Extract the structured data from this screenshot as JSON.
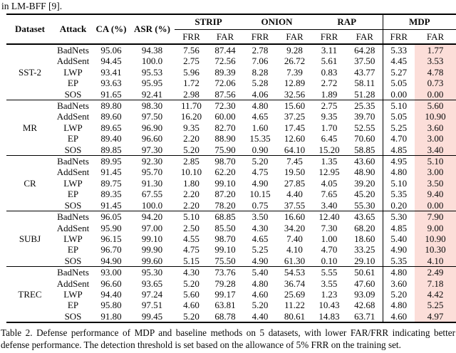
{
  "page": {
    "top_text": "in LM-BFF [9].",
    "caption": "Table 2. Defense performance of MDP and baseline methods on 5 datasets, with lower FAR/FRR indicating better defense performance. The detection threshold is set based on the allowance of 5% FRR on the training set."
  },
  "colors": {
    "highlight": "#fcded9",
    "rule": "#000000",
    "text": "#0a0a0a"
  },
  "table": {
    "headers": {
      "dataset": "Dataset",
      "attack": "Attack",
      "ca": "CA (%)",
      "asr": "ASR (%)",
      "methods": [
        "STRIP",
        "ONION",
        "RAP",
        "MDP"
      ],
      "sub": [
        "FRR",
        "FAR"
      ]
    },
    "groups": [
      {
        "dataset": "SST-2",
        "rows": [
          {
            "attack": "BadNets",
            "ca": "95.06",
            "asr": "94.38",
            "values": [
              "7.56",
              "87.44",
              "2.78",
              "9.28",
              "3.11",
              "64.28",
              "5.33",
              "1.77"
            ]
          },
          {
            "attack": "AddSent",
            "ca": "94.45",
            "asr": "100.0",
            "values": [
              "2.75",
              "72.56",
              "7.06",
              "26.72",
              "5.61",
              "37.50",
              "4.45",
              "3.53"
            ]
          },
          {
            "attack": "LWP",
            "ca": "93.41",
            "asr": "95.53",
            "values": [
              "5.96",
              "89.39",
              "8.28",
              "7.39",
              "0.83",
              "43.77",
              "5.27",
              "4.78"
            ]
          },
          {
            "attack": "EP",
            "ca": "93.63",
            "asr": "95.95",
            "values": [
              "1.72",
              "72.06",
              "5.28",
              "12.89",
              "2.72",
              "58.11",
              "5.05",
              "0.73"
            ]
          },
          {
            "attack": "SOS",
            "ca": "91.65",
            "asr": "92.41",
            "values": [
              "2.98",
              "87.56",
              "4.06",
              "32.56",
              "1.89",
              "51.28",
              "0.00",
              "0.00"
            ]
          }
        ]
      },
      {
        "dataset": "MR",
        "rows": [
          {
            "attack": "BadNets",
            "ca": "89.80",
            "asr": "98.30",
            "values": [
              "11.70",
              "72.30",
              "4.80",
              "15.60",
              "2.75",
              "25.35",
              "5.10",
              "5.60"
            ]
          },
          {
            "attack": "AddSent",
            "ca": "89.60",
            "asr": "97.50",
            "values": [
              "16.20",
              "60.00",
              "4.65",
              "37.25",
              "9.35",
              "39.70",
              "5.05",
              "10.90"
            ]
          },
          {
            "attack": "LWP",
            "ca": "89.65",
            "asr": "96.90",
            "values": [
              "9.35",
              "82.70",
              "1.60",
              "17.45",
              "1.70",
              "52.55",
              "5.25",
              "3.60"
            ]
          },
          {
            "attack": "EP",
            "ca": "89.40",
            "asr": "96.60",
            "values": [
              "2.20",
              "88.90",
              "15.35",
              "12.60",
              "6.45",
              "70.60",
              "4.70",
              "3.00"
            ]
          },
          {
            "attack": "SOS",
            "ca": "89.85",
            "asr": "97.30",
            "values": [
              "5.20",
              "75.90",
              "0.90",
              "64.10",
              "15.20",
              "58.85",
              "4.85",
              "3.40"
            ]
          }
        ]
      },
      {
        "dataset": "CR",
        "rows": [
          {
            "attack": "BadNets",
            "ca": "89.95",
            "asr": "92.30",
            "values": [
              "2.85",
              "98.70",
              "5.20",
              "7.45",
              "1.35",
              "43.60",
              "4.95",
              "5.10"
            ]
          },
          {
            "attack": "AddSent",
            "ca": "91.45",
            "asr": "95.70",
            "values": [
              "10.10",
              "62.20",
              "4.75",
              "19.50",
              "12.95",
              "48.90",
              "4.80",
              "3.00"
            ]
          },
          {
            "attack": "LWP",
            "ca": "89.75",
            "asr": "91.30",
            "values": [
              "1.80",
              "99.10",
              "4.90",
              "27.85",
              "4.05",
              "39.20",
              "5.10",
              "3.50"
            ]
          },
          {
            "attack": "EP",
            "ca": "89.35",
            "asr": "67.55",
            "values": [
              "2.20",
              "87.20",
              "10.15",
              "4.40",
              "7.65",
              "45.20",
              "5.35",
              "9.40"
            ]
          },
          {
            "attack": "SOS",
            "ca": "91.45",
            "asr": "100.0",
            "values": [
              "2.20",
              "78.20",
              "0.75",
              "37.55",
              "3.40",
              "55.30",
              "0.20",
              "0.00"
            ]
          }
        ]
      },
      {
        "dataset": "SUBJ",
        "rows": [
          {
            "attack": "BadNets",
            "ca": "96.05",
            "asr": "94.20",
            "values": [
              "5.10",
              "68.85",
              "3.50",
              "16.60",
              "12.40",
              "43.65",
              "5.30",
              "7.90"
            ]
          },
          {
            "attack": "AddSent",
            "ca": "95.90",
            "asr": "97.00",
            "values": [
              "2.50",
              "85.50",
              "4.30",
              "34.20",
              "7.30",
              "68.20",
              "4.85",
              "9.00"
            ]
          },
          {
            "attack": "LWP",
            "ca": "96.15",
            "asr": "99.10",
            "values": [
              "4.55",
              "98.70",
              "4.65",
              "7.40",
              "1.00",
              "18.60",
              "5.40",
              "10.90"
            ]
          },
          {
            "attack": "EP",
            "ca": "96.70",
            "asr": "99.90",
            "values": [
              "4.75",
              "99.10",
              "5.25",
              "4.10",
              "4.70",
              "33.25",
              "4.90",
              "10.30"
            ]
          },
          {
            "attack": "SOS",
            "ca": "94.90",
            "asr": "99.60",
            "values": [
              "5.15",
              "75.50",
              "4.90",
              "61.30",
              "0.10",
              "29.10",
              "5.35",
              "4.10"
            ]
          }
        ]
      },
      {
        "dataset": "TREC",
        "rows": [
          {
            "attack": "BadNets",
            "ca": "93.00",
            "asr": "95.30",
            "values": [
              "4.30",
              "73.76",
              "5.40",
              "54.53",
              "5.55",
              "50.61",
              "4.80",
              "2.49"
            ]
          },
          {
            "attack": "AddSent",
            "ca": "96.60",
            "asr": "93.65",
            "values": [
              "5.20",
              "79.28",
              "4.80",
              "36.74",
              "3.55",
              "47.60",
              "3.60",
              "7.18"
            ]
          },
          {
            "attack": "LWP",
            "ca": "94.40",
            "asr": "97.24",
            "values": [
              "5.60",
              "99.17",
              "4.60",
              "25.69",
              "1.23",
              "93.09",
              "5.20",
              "4.42"
            ]
          },
          {
            "attack": "EP",
            "ca": "95.80",
            "asr": "97.51",
            "values": [
              "4.60",
              "63.81",
              "5.20",
              "11.22",
              "10.43",
              "42.68",
              "4.80",
              "5.25"
            ]
          },
          {
            "attack": "SOS",
            "ca": "91.80",
            "asr": "99.45",
            "values": [
              "5.20",
              "68.78",
              "4.40",
              "80.61",
              "14.83",
              "63.71",
              "4.60",
              "4.97"
            ]
          }
        ]
      }
    ]
  }
}
